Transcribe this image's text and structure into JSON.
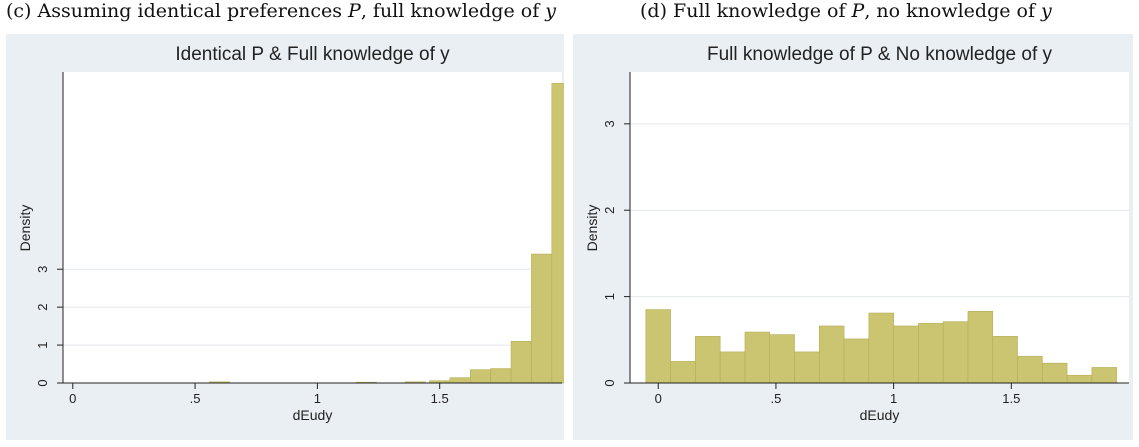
{
  "captions": {
    "c": {
      "prefix": "(c) Assuming identical preferences ",
      "var1": "P",
      "mid": ", full knowledge of ",
      "var2": "y",
      "suffix": ""
    },
    "d": {
      "prefix": "(d) Full knowledge of ",
      "var1": "P",
      "mid": ", no knowledge of ",
      "var2": "y",
      "suffix": ""
    }
  },
  "colors": {
    "bar": "#cbc470",
    "bar_edge": "#b5ae55",
    "plot_bg": "#ffffff",
    "panel_bg": "#e9eff3",
    "grid": "#e3e8ec"
  },
  "chart_data": [
    {
      "type": "bar",
      "title": "Identical P & Full knowledge of y",
      "xlabel": "dEudy",
      "ylabel": "Density",
      "xlim": [
        -0.04,
        2.0
      ],
      "ylim": [
        0,
        8.2
      ],
      "xticks": [
        0,
        0.5,
        1,
        1.5
      ],
      "xtick_labels": [
        "0",
        ".5",
        "1",
        "1.5"
      ],
      "yticks": [
        0,
        1,
        2,
        3
      ],
      "ytick_labels": [
        "0",
        "1",
        "2",
        "3"
      ],
      "grid": true,
      "bin_width": 0.0833,
      "bins": [
        {
          "x": 0.6,
          "value": 0.03
        },
        {
          "x": 1.2,
          "value": 0.02
        },
        {
          "x": 1.4,
          "value": 0.03
        },
        {
          "x": 1.5,
          "value": 0.06
        },
        {
          "x": 1.5833,
          "value": 0.14
        },
        {
          "x": 1.6667,
          "value": 0.35
        },
        {
          "x": 1.75,
          "value": 0.38
        },
        {
          "x": 1.8333,
          "value": 1.1
        },
        {
          "x": 1.9167,
          "value": 3.4
        },
        {
          "x": 2.0,
          "value": 7.9
        }
      ]
    },
    {
      "type": "bar",
      "title": "Full knowledge of P & No knowledge of y",
      "xlabel": "dEudy",
      "ylabel": "Density",
      "xlim": [
        -0.12,
        2.0
      ],
      "ylim": [
        0,
        3.6
      ],
      "xticks": [
        0,
        0.5,
        1,
        1.5
      ],
      "xtick_labels": [
        "0",
        ".5",
        "1",
        "1.5"
      ],
      "yticks": [
        0,
        1,
        2,
        3
      ],
      "ytick_labels": [
        "0",
        "1",
        "2",
        "3"
      ],
      "grid": true,
      "bin_width": 0.1053,
      "bins": [
        {
          "x": 0.0,
          "value": 0.85
        },
        {
          "x": 0.1053,
          "value": 0.25
        },
        {
          "x": 0.2105,
          "value": 0.54
        },
        {
          "x": 0.3158,
          "value": 0.36
        },
        {
          "x": 0.4211,
          "value": 0.59
        },
        {
          "x": 0.5263,
          "value": 0.56
        },
        {
          "x": 0.6316,
          "value": 0.36
        },
        {
          "x": 0.7368,
          "value": 0.66
        },
        {
          "x": 0.8421,
          "value": 0.51
        },
        {
          "x": 0.9474,
          "value": 0.81
        },
        {
          "x": 1.0526,
          "value": 0.66
        },
        {
          "x": 1.1579,
          "value": 0.69
        },
        {
          "x": 1.2632,
          "value": 0.71
        },
        {
          "x": 1.3684,
          "value": 0.83
        },
        {
          "x": 1.4737,
          "value": 0.54
        },
        {
          "x": 1.5789,
          "value": 0.31
        },
        {
          "x": 1.6842,
          "value": 0.23
        },
        {
          "x": 1.7895,
          "value": 0.09
        },
        {
          "x": 1.8947,
          "value": 0.18
        }
      ]
    }
  ]
}
